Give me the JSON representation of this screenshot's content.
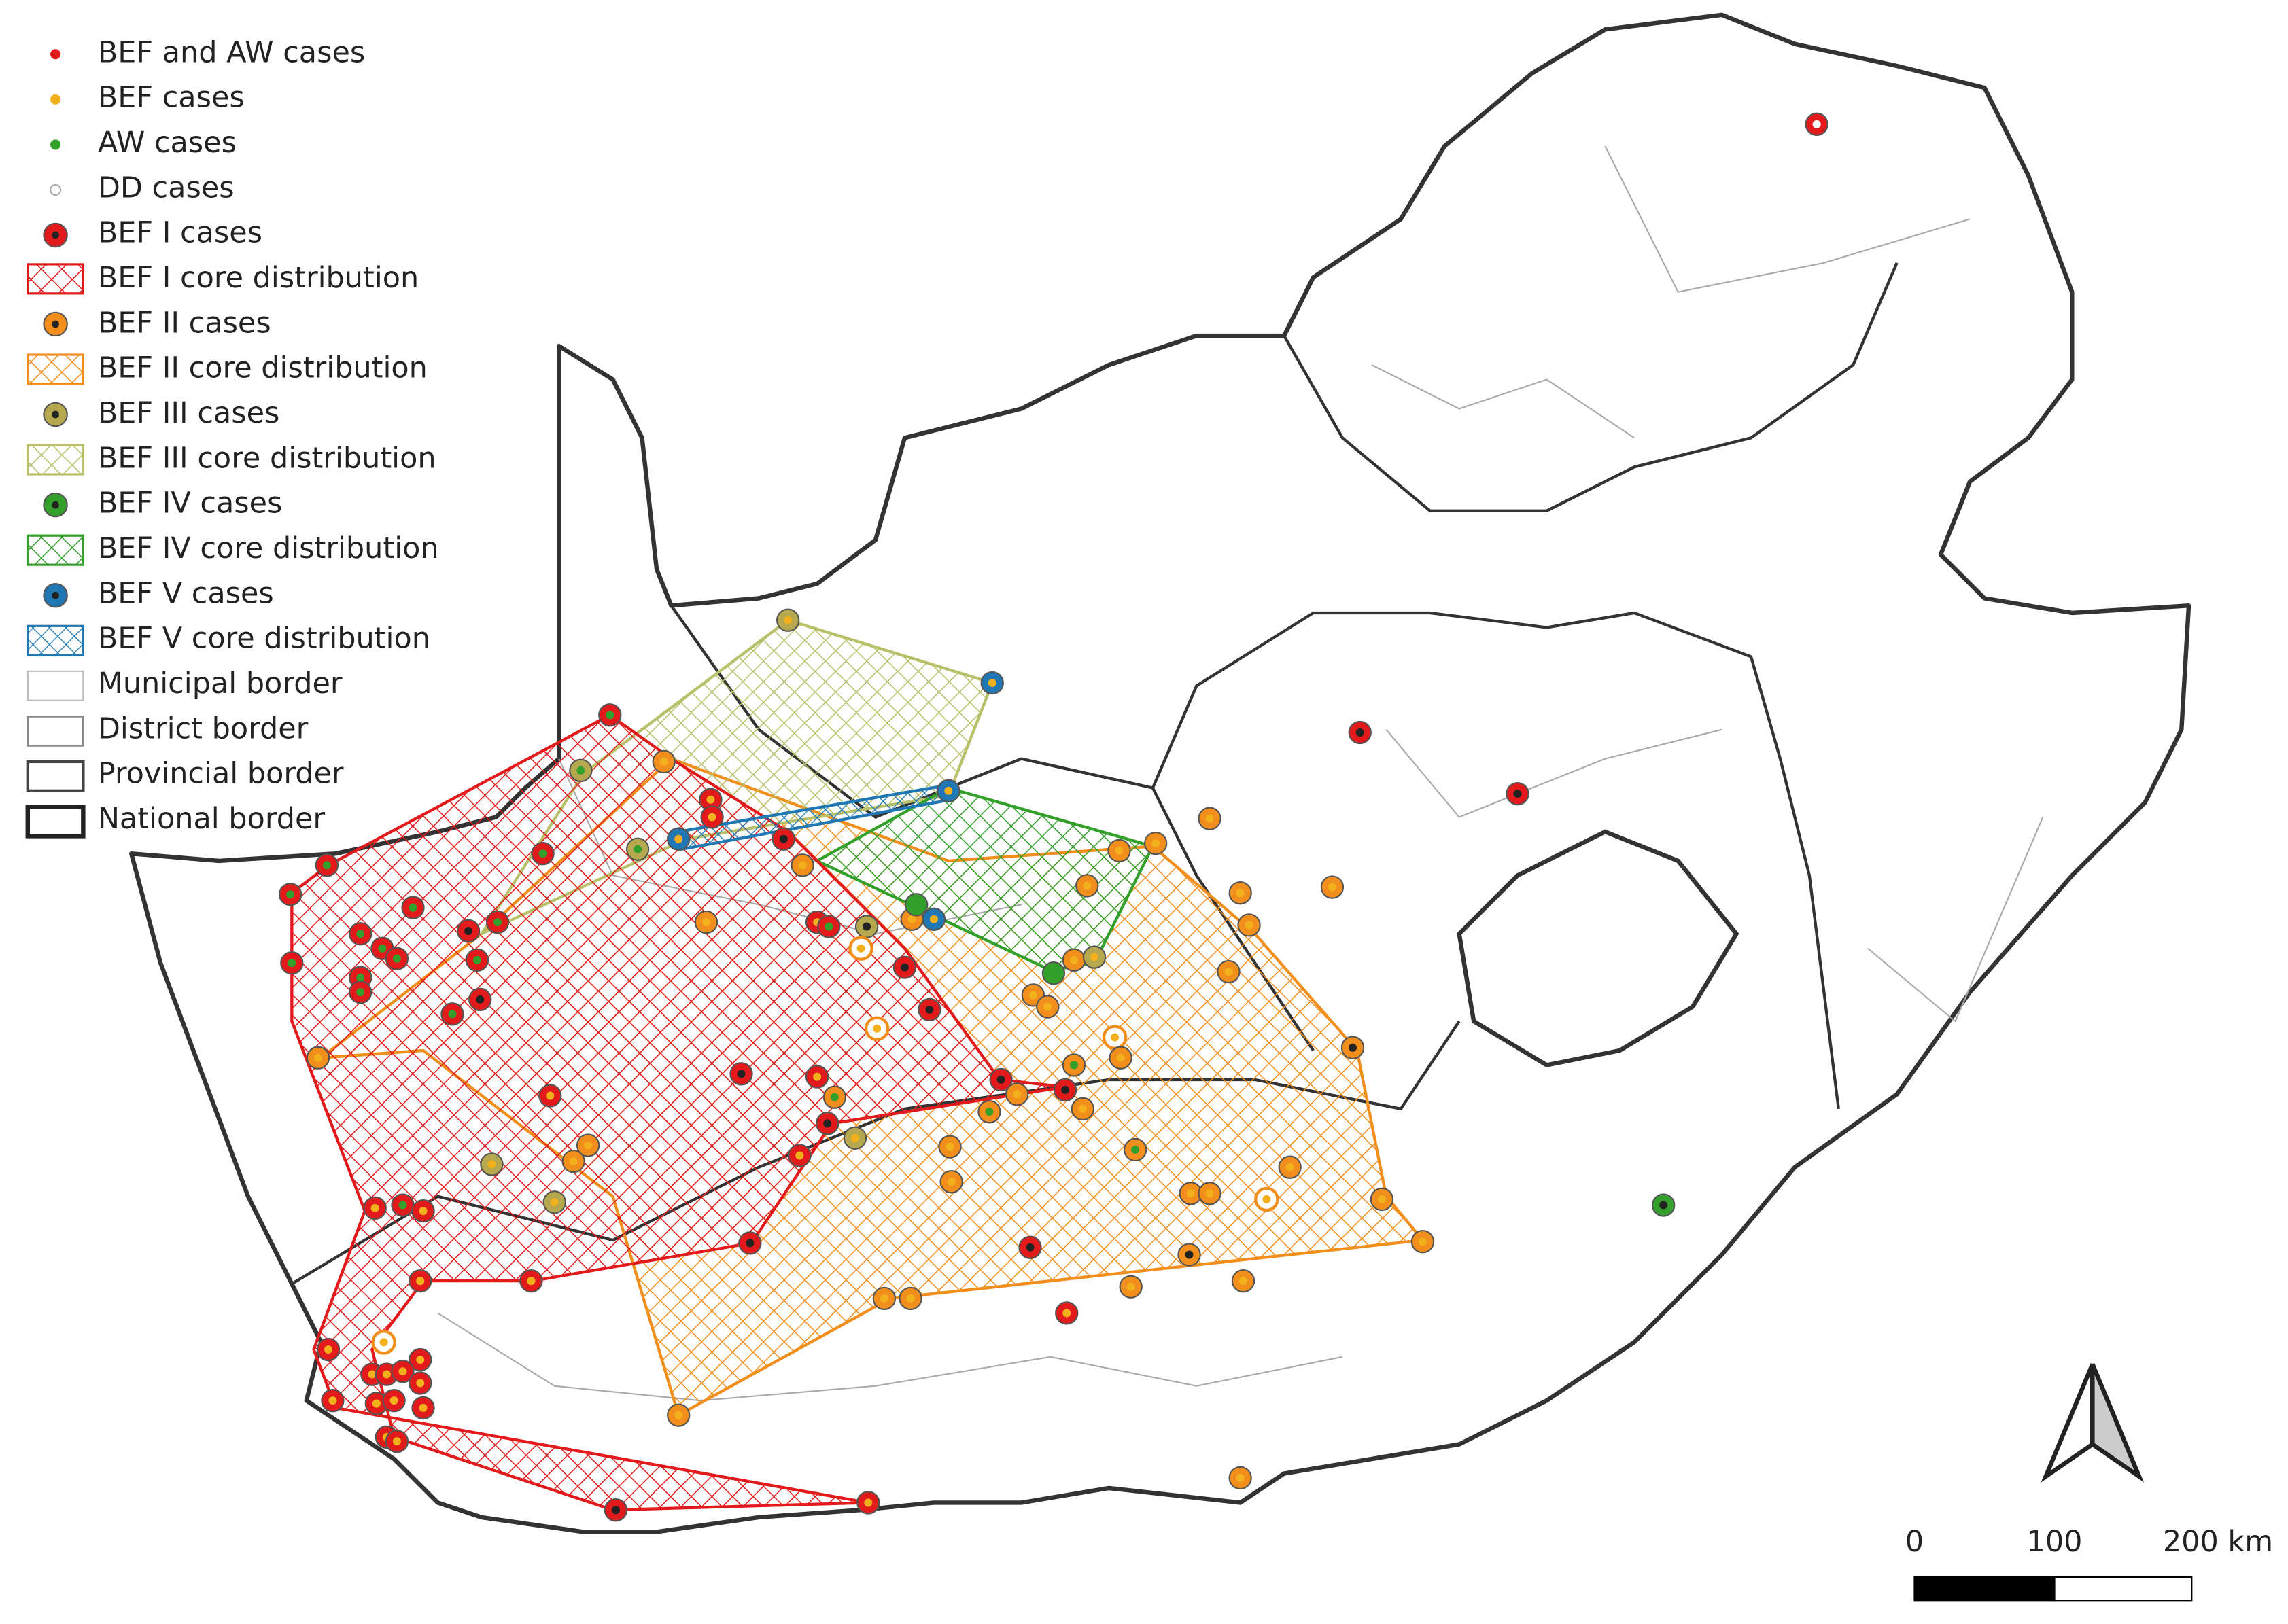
{
  "legend": {
    "items": [
      {
        "label": "BEF and AW cases"
      },
      {
        "label": "BEF cases"
      },
      {
        "label": "AW cases"
      },
      {
        "label": "DD cases"
      },
      {
        "label": "BEF I cases"
      },
      {
        "label": "BEF I core distribution"
      },
      {
        "label": "BEF II cases"
      },
      {
        "label": "BEF II core distribution"
      },
      {
        "label": "BEF III cases"
      },
      {
        "label": "BEF III core distribution"
      },
      {
        "label": "BEF IV cases"
      },
      {
        "label": "BEF IV core distribution"
      },
      {
        "label": "BEF V cases"
      },
      {
        "label": "BEF V core distribution"
      },
      {
        "label": "Municipal border"
      },
      {
        "label": "District border"
      },
      {
        "label": "Provincial border"
      },
      {
        "label": "National border"
      }
    ]
  },
  "scale_bar": {
    "labels": [
      "0",
      "100",
      "200 km"
    ]
  }
}
